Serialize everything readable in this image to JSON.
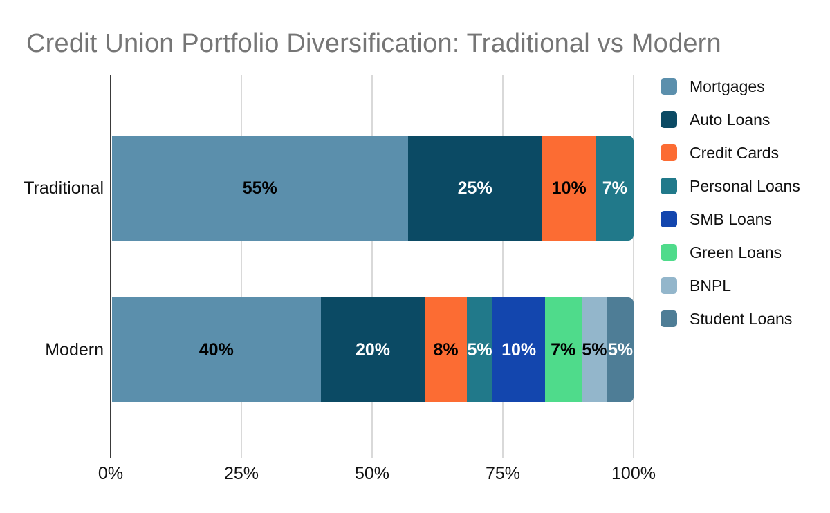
{
  "title": "Credit Union Portfolio Diversification: Traditional vs Modern",
  "colors": {
    "title_text": "#757575",
    "axis_label_text": "#111111",
    "category_label_text": "#111111",
    "legend_text": "#111111",
    "gridline": "#d9d9d9",
    "axis_line": "#3a3a3a",
    "background": "#ffffff"
  },
  "chart_data": {
    "type": "bar",
    "orientation": "horizontal",
    "stacked": "percent",
    "title": "Credit Union Portfolio Diversification: Traditional vs Modern",
    "categories": [
      "Traditional",
      "Modern"
    ],
    "series": [
      {
        "name": "Mortgages",
        "color": "#5b8fac",
        "label_color": "#000000",
        "values": [
          55,
          40
        ]
      },
      {
        "name": "Auto Loans",
        "color": "#0b4a64",
        "label_color": "#ffffff",
        "values": [
          25,
          20
        ]
      },
      {
        "name": "Credit Cards",
        "color": "#fc6c33",
        "label_color": "#000000",
        "values": [
          10,
          8
        ]
      },
      {
        "name": "Personal Loans",
        "color": "#21798a",
        "label_color": "#ffffff",
        "values": [
          7,
          5
        ]
      },
      {
        "name": "SMB Loans",
        "color": "#1346ae",
        "label_color": "#ffffff",
        "values": [
          0,
          10
        ]
      },
      {
        "name": "Green Loans",
        "color": "#4fdb8b",
        "label_color": "#000000",
        "values": [
          0,
          7
        ]
      },
      {
        "name": "BNPL",
        "color": "#93b6cb",
        "label_color": "#000000",
        "values": [
          0,
          5
        ]
      },
      {
        "name": "Student Loans",
        "color": "#4e7d96",
        "label_color": "#ffffff",
        "values": [
          0,
          5
        ]
      }
    ],
    "data_labels": {
      "Traditional": [
        "55%",
        "25%",
        "10%",
        "7%"
      ],
      "Modern": [
        "40%",
        "20%",
        "8%",
        "5%",
        "10%",
        "7%",
        "5%",
        "5%"
      ]
    },
    "x_ticks": [
      "0%",
      "25%",
      "50%",
      "75%",
      "100%"
    ],
    "xlim": [
      0,
      100
    ],
    "grid": true,
    "legend_position": "right"
  }
}
